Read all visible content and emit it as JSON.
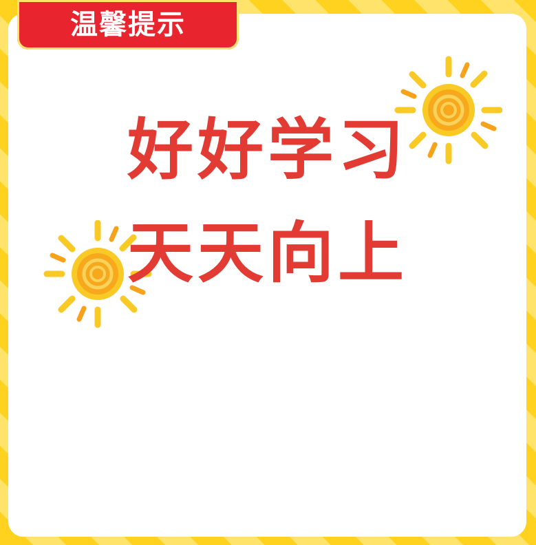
{
  "badge": {
    "label": "温馨提示"
  },
  "main": {
    "line1": "好好学习",
    "line2": "天天向上"
  },
  "icons": {
    "decor_left": "sun-icon",
    "decor_right": "sun-icon"
  },
  "colors": {
    "badge": "#e8252f",
    "text": "#e23b34",
    "frame_stripe_a": "#ffd21f",
    "frame_stripe_b": "#ffe36a",
    "sun_core": "#f7a21b",
    "sun_ray": "#f9c925"
  }
}
